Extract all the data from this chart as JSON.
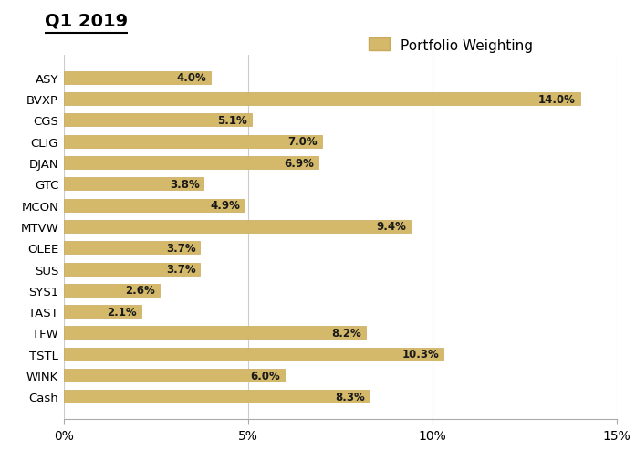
{
  "title": "Q1 2019",
  "legend_label": "Portfolio Weighting",
  "categories": [
    "ASY",
    "BVXP",
    "CGS",
    "CLIG",
    "DJAN",
    "GTC",
    "MCON",
    "MTVW",
    "OLEE",
    "SUS",
    "SYS1",
    "TAST",
    "TFW",
    "TSTL",
    "WINK",
    "Cash"
  ],
  "values": [
    4.0,
    14.0,
    5.1,
    7.0,
    6.9,
    3.8,
    4.9,
    9.4,
    3.7,
    3.7,
    2.6,
    2.1,
    8.2,
    10.3,
    6.0,
    8.3
  ],
  "bar_color": "#D4B96A",
  "bar_edge_color": "#C8A85A",
  "label_color": "#1a1a1a",
  "background_color": "#ffffff",
  "xlim": [
    0,
    15
  ],
  "xtick_values": [
    0,
    5,
    10,
    15
  ],
  "xtick_labels": [
    "0%",
    "5%",
    "10%",
    "15%"
  ],
  "title_fontsize": 14,
  "bar_label_fontsize": 8.5,
  "ytick_fontsize": 9.5,
  "xtick_fontsize": 10,
  "legend_fontsize": 11,
  "bar_height": 0.6,
  "figsize": [
    6.97,
    5.06
  ],
  "dpi": 100
}
